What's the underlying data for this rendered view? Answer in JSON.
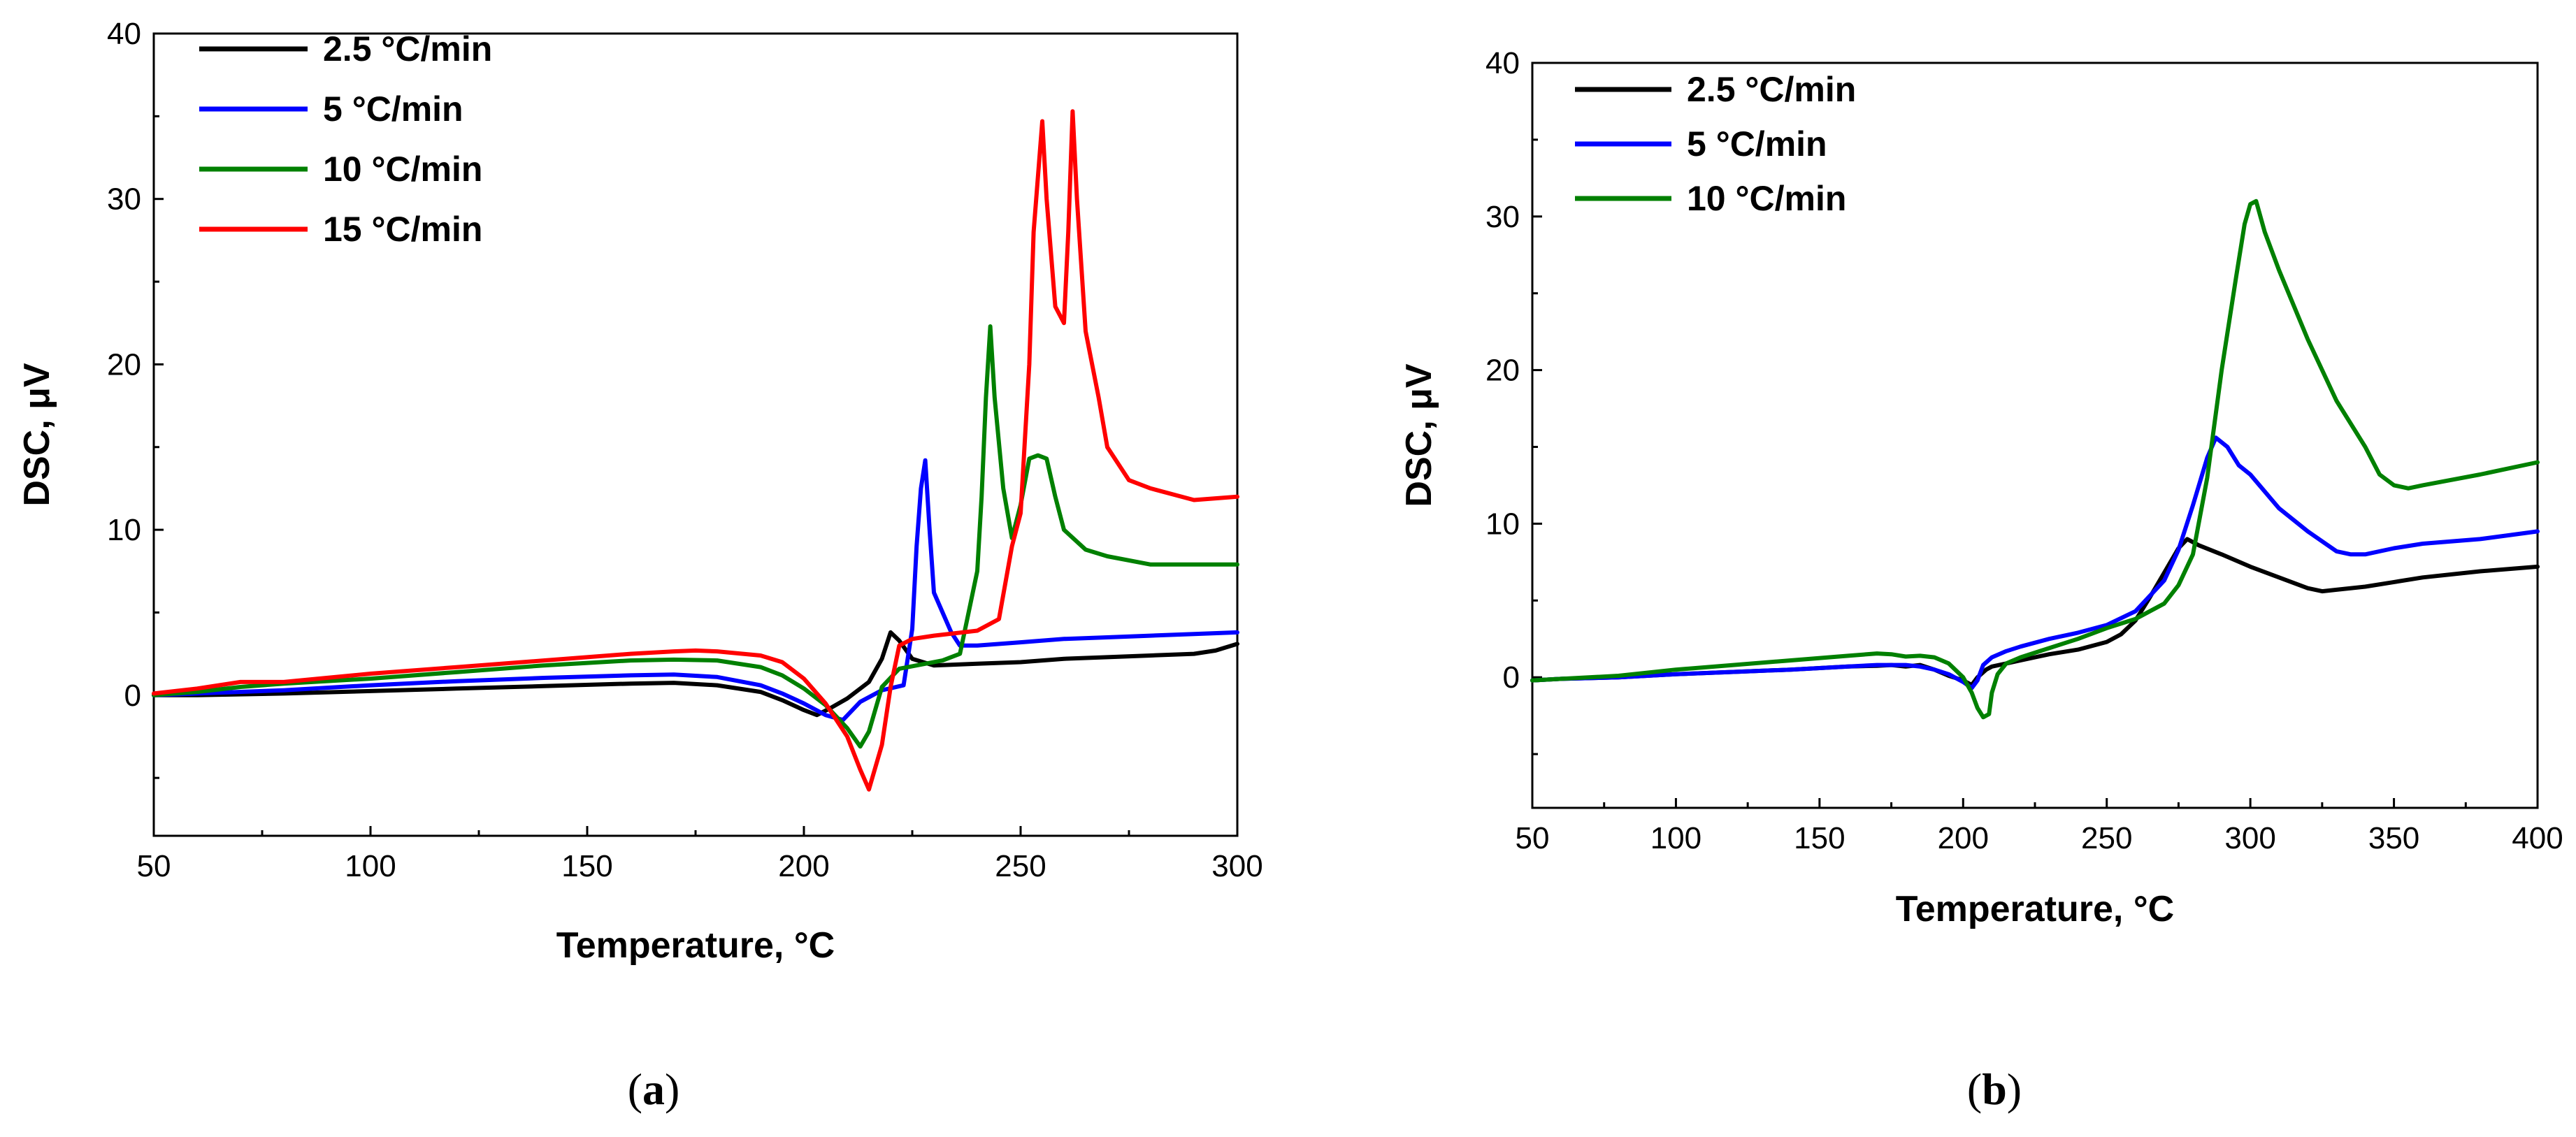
{
  "chart_data": [
    {
      "type": "line",
      "panel": "a",
      "caption": {
        "open": "(",
        "letter": "a",
        "close": ")"
      },
      "xlabel": "Temperature, °C",
      "ylabel": "DSC, μV",
      "xlim": [
        50,
        300
      ],
      "ylim": [
        -8.5,
        40
      ],
      "x_ticks": [
        50,
        100,
        150,
        200,
        250,
        300
      ],
      "x_tick_labels": [
        "50",
        "100",
        "150",
        "200",
        "250",
        "300"
      ],
      "y_ticks": [
        0,
        10,
        20,
        30,
        40
      ],
      "y_tick_labels": [
        "0",
        "10",
        "20",
        "30",
        "40"
      ],
      "grid": false,
      "legend_position": "top-left",
      "series": [
        {
          "name": "2.5 °C/min",
          "color": "#000000",
          "x": [
            50,
            60,
            80,
            100,
            120,
            140,
            160,
            170,
            180,
            190,
            195,
            200,
            203,
            206,
            210,
            215,
            218,
            220,
            222,
            225,
            230,
            240,
            250,
            260,
            270,
            280,
            290,
            295,
            300
          ],
          "y": [
            0,
            0,
            0.1,
            0.25,
            0.4,
            0.55,
            0.7,
            0.75,
            0.6,
            0.2,
            -0.3,
            -0.9,
            -1.2,
            -0.8,
            -0.2,
            0.8,
            2.2,
            3.8,
            3.3,
            2.2,
            1.8,
            1.9,
            2.0,
            2.2,
            2.3,
            2.4,
            2.5,
            2.7,
            3.1
          ]
        },
        {
          "name": "5 °C/min",
          "color": "#0000ff",
          "x": [
            50,
            60,
            80,
            100,
            120,
            140,
            160,
            170,
            180,
            190,
            195,
            200,
            205,
            209,
            213,
            218,
            223,
            225,
            226,
            227,
            228,
            229,
            230,
            232,
            234,
            236,
            240,
            250,
            260,
            270,
            280,
            290,
            300
          ],
          "y": [
            0,
            0.1,
            0.3,
            0.6,
            0.85,
            1.05,
            1.2,
            1.25,
            1.1,
            0.6,
            0.1,
            -0.5,
            -1.2,
            -1.5,
            -0.4,
            0.3,
            0.6,
            4.0,
            9.0,
            12.5,
            14.2,
            10.0,
            6.2,
            5.0,
            3.8,
            3.0,
            3.0,
            3.2,
            3.4,
            3.5,
            3.6,
            3.7,
            3.8
          ]
        },
        {
          "name": "10 °C/min",
          "color": "#008000",
          "x": [
            50,
            60,
            70,
            80,
            100,
            120,
            140,
            160,
            170,
            180,
            190,
            195,
            200,
            205,
            210,
            213,
            215,
            218,
            222,
            228,
            232,
            236,
            238,
            240,
            241,
            242,
            243,
            244,
            246,
            248,
            250,
            252,
            254,
            256,
            258,
            260,
            265,
            270,
            280,
            290,
            300
          ],
          "y": [
            0,
            0.2,
            0.5,
            0.7,
            1.0,
            1.4,
            1.8,
            2.1,
            2.15,
            2.1,
            1.7,
            1.2,
            0.4,
            -0.6,
            -2.0,
            -3.1,
            -2.2,
            0.5,
            1.6,
            1.9,
            2.1,
            2.5,
            5.0,
            7.5,
            12.0,
            18.0,
            22.3,
            18.0,
            12.5,
            9.5,
            11.5,
            14.3,
            14.5,
            14.3,
            12.0,
            10.0,
            8.8,
            8.4,
            7.9,
            7.9,
            7.9
          ]
        },
        {
          "name": "15 °C/min",
          "color": "#ff0000",
          "x": [
            50,
            60,
            65,
            70,
            80,
            100,
            120,
            140,
            160,
            170,
            175,
            180,
            190,
            195,
            200,
            205,
            210,
            213,
            215,
            218,
            220,
            222,
            225,
            230,
            240,
            245,
            248,
            250,
            252,
            253,
            255,
            256,
            258,
            260,
            261,
            262,
            263,
            265,
            268,
            270,
            275,
            280,
            290,
            300
          ],
          "y": [
            0.1,
            0.4,
            0.6,
            0.8,
            0.8,
            1.3,
            1.7,
            2.1,
            2.5,
            2.65,
            2.7,
            2.65,
            2.4,
            2.0,
            1.0,
            -0.5,
            -2.5,
            -4.5,
            -5.7,
            -3.0,
            0.5,
            3.0,
            3.4,
            3.6,
            3.9,
            4.6,
            9.0,
            11.0,
            20.0,
            28.0,
            34.7,
            30.0,
            23.5,
            22.5,
            28.0,
            35.3,
            30.0,
            22.0,
            18.0,
            15.0,
            13.0,
            12.5,
            11.8,
            12.0
          ]
        }
      ]
    },
    {
      "type": "line",
      "panel": "b",
      "caption": {
        "open": "(",
        "letter": "b",
        "close": ")"
      },
      "xlabel": "Temperature, °C",
      "ylabel": "DSC, μV",
      "xlim": [
        50,
        400
      ],
      "ylim": [
        -8.5,
        40
      ],
      "x_ticks": [
        50,
        100,
        150,
        200,
        250,
        300,
        350,
        400
      ],
      "x_tick_labels": [
        "50",
        "100",
        "150",
        "200",
        "250",
        "300",
        "350",
        "400"
      ],
      "y_ticks": [
        0,
        10,
        20,
        30,
        40
      ],
      "y_tick_labels": [
        "0",
        "10",
        "20",
        "30",
        "40"
      ],
      "grid": false,
      "legend_position": "top-left",
      "series": [
        {
          "name": "2.5 °C/min",
          "color": "#000000",
          "x": [
            50,
            60,
            80,
            100,
            120,
            140,
            160,
            170,
            175,
            180,
            185,
            190,
            195,
            200,
            203,
            205,
            208,
            210,
            215,
            220,
            230,
            240,
            250,
            255,
            260,
            265,
            270,
            275,
            278,
            282,
            290,
            300,
            310,
            320,
            325,
            330,
            340,
            350,
            360,
            380,
            400
          ],
          "y": [
            -0.2,
            -0.1,
            0,
            0.2,
            0.35,
            0.5,
            0.7,
            0.75,
            0.8,
            0.7,
            0.8,
            0.5,
            0.1,
            -0.2,
            -0.5,
            0,
            0.5,
            0.7,
            0.9,
            1.1,
            1.5,
            1.8,
            2.3,
            2.8,
            3.7,
            5.2,
            6.8,
            8.4,
            9.0,
            8.6,
            8.0,
            7.2,
            6.5,
            5.8,
            5.6,
            5.7,
            5.9,
            6.2,
            6.5,
            6.9,
            7.2
          ]
        },
        {
          "name": "5 °C/min",
          "color": "#0000ff",
          "x": [
            50,
            60,
            80,
            100,
            120,
            140,
            160,
            170,
            180,
            185,
            190,
            195,
            200,
            203,
            205,
            207,
            210,
            215,
            220,
            230,
            240,
            250,
            260,
            270,
            275,
            280,
            285,
            288,
            292,
            296,
            300,
            310,
            320,
            330,
            335,
            340,
            350,
            360,
            380,
            400
          ],
          "y": [
            -0.2,
            -0.1,
            0,
            0.2,
            0.35,
            0.5,
            0.7,
            0.8,
            0.8,
            0.7,
            0.5,
            0.2,
            -0.3,
            -0.7,
            -0.2,
            0.8,
            1.3,
            1.7,
            2.0,
            2.5,
            2.9,
            3.4,
            4.3,
            6.3,
            8.3,
            11.2,
            14.3,
            15.6,
            15.0,
            13.8,
            13.2,
            11.0,
            9.5,
            8.2,
            8.0,
            8.0,
            8.4,
            8.7,
            9.0,
            9.5
          ]
        },
        {
          "name": "10 °C/min",
          "color": "#008000",
          "x": [
            50,
            60,
            80,
            100,
            120,
            140,
            160,
            170,
            175,
            180,
            185,
            190,
            195,
            200,
            203,
            205,
            207,
            209,
            210,
            212,
            215,
            220,
            230,
            240,
            250,
            260,
            270,
            275,
            280,
            285,
            290,
            295,
            298,
            300,
            302,
            305,
            310,
            320,
            330,
            340,
            345,
            350,
            355,
            360,
            380,
            400
          ],
          "y": [
            -0.2,
            -0.1,
            0.1,
            0.5,
            0.8,
            1.1,
            1.4,
            1.55,
            1.5,
            1.35,
            1.4,
            1.3,
            0.9,
            0,
            -1.0,
            -2.0,
            -2.6,
            -2.4,
            -1.0,
            0.2,
            0.9,
            1.3,
            1.9,
            2.5,
            3.2,
            3.8,
            4.8,
            6.0,
            8.0,
            13.0,
            20.0,
            26.0,
            29.5,
            30.8,
            31.0,
            29.0,
            26.5,
            22.0,
            18.0,
            15.0,
            13.2,
            12.5,
            12.3,
            12.5,
            13.2,
            14.0
          ]
        }
      ]
    }
  ]
}
